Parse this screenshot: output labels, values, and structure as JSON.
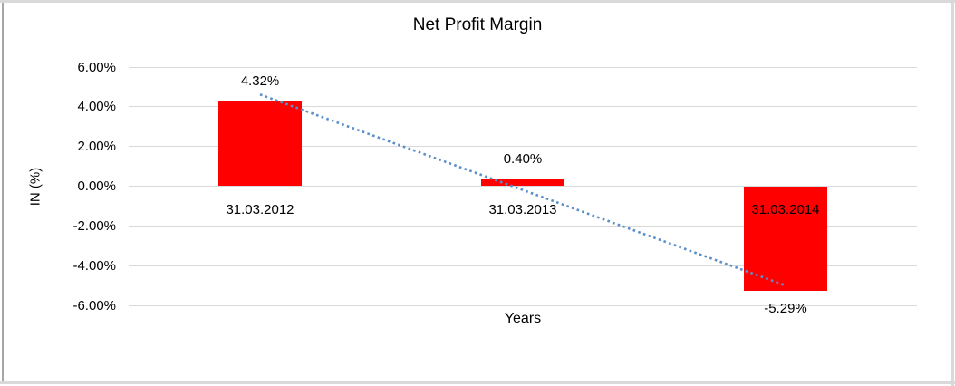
{
  "frame": {
    "background_color": "#ffffff",
    "edge_color": "#d9d9d9",
    "left_edge_color": "#a6a6a6"
  },
  "chart_data": {
    "type": "bar",
    "title": "Net Profit Margin",
    "xlabel": "Years",
    "ylabel": "IN (%)",
    "categories": [
      "31.03.2012",
      "31.03.2013",
      "31.03.2014"
    ],
    "series": [
      {
        "name": "Net Profit Margin",
        "values": [
          4.32,
          0.4,
          -5.29
        ],
        "color": "#ff0000"
      }
    ],
    "data_labels": [
      "4.32%",
      "0.40%",
      "-5.29%"
    ],
    "yticks": [
      "6.00%",
      "4.00%",
      "2.00%",
      "0.00%",
      "-2.00%",
      "-4.00%",
      "-6.00%"
    ],
    "ytick_values": [
      6,
      4,
      2,
      0,
      -2,
      -4,
      -6
    ],
    "ylim": [
      -6,
      6
    ],
    "grid": true,
    "gridline_color": "#d9d9d9",
    "legend": "none",
    "trendline": {
      "type": "linear",
      "style": "dotted",
      "color": "#5b8fc9",
      "start_value": 4.62,
      "end_value": -5.0
    },
    "text_color": "#000000"
  }
}
